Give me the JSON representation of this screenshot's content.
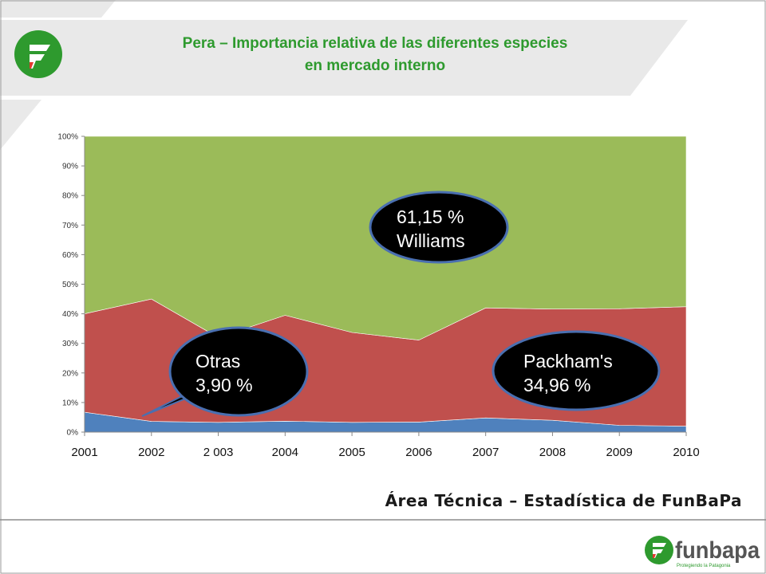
{
  "header": {
    "title_line1": "Pera – Importancia relativa de las diferentes especies",
    "title_line2": "en mercado interno"
  },
  "chart_data": {
    "type": "area",
    "stacked": true,
    "normalized": true,
    "title": "",
    "xlabel": "",
    "ylabel": "",
    "categories": [
      "2001",
      "2002",
      "2 003",
      "2004",
      "2005",
      "2006",
      "2007",
      "2008",
      "2009",
      "2010"
    ],
    "y_ticks": [
      "0%",
      "10%",
      "20%",
      "30%",
      "40%",
      "50%",
      "60%",
      "70%",
      "80%",
      "90%",
      "100%"
    ],
    "ylim": [
      0,
      100
    ],
    "grid": false,
    "legend": "none",
    "series": [
      {
        "values": [
          6.7,
          3.6,
          3.3,
          3.7,
          3.3,
          3.4,
          4.8,
          4.0,
          2.3,
          2.0
        ],
        "color": "#4f81bd"
      },
      {
        "values": [
          33.3,
          41.4,
          28.7,
          35.8,
          30.4,
          27.7,
          37.2,
          37.6,
          39.4,
          40.4
        ],
        "color": "#c0504d"
      },
      {
        "values": [
          60.0,
          55.0,
          68.0,
          60.5,
          66.3,
          68.9,
          58.0,
          58.4,
          58.3,
          57.6
        ],
        "color": "#9bbb59"
      }
    ],
    "annotations": [
      {
        "line1": "61,15 %",
        "line2": "Williams"
      },
      {
        "line1": "Packham's",
        "line2": "34,96 %"
      },
      {
        "line1": "Otras",
        "line2": "3,90 %"
      }
    ]
  },
  "footer": {
    "credit": "Área Técnica – Estadística de FunBaPa",
    "brand": "funbapa",
    "tagline": "Protegiendo la Patagonia"
  },
  "colors": {
    "accent_green": "#2e9a2e",
    "panel_gray": "#e8e8e8",
    "bubble_fill": "#000000",
    "bubble_border": "#4a6fb0"
  },
  "icons": [
    "funbapa-logo-icon"
  ]
}
